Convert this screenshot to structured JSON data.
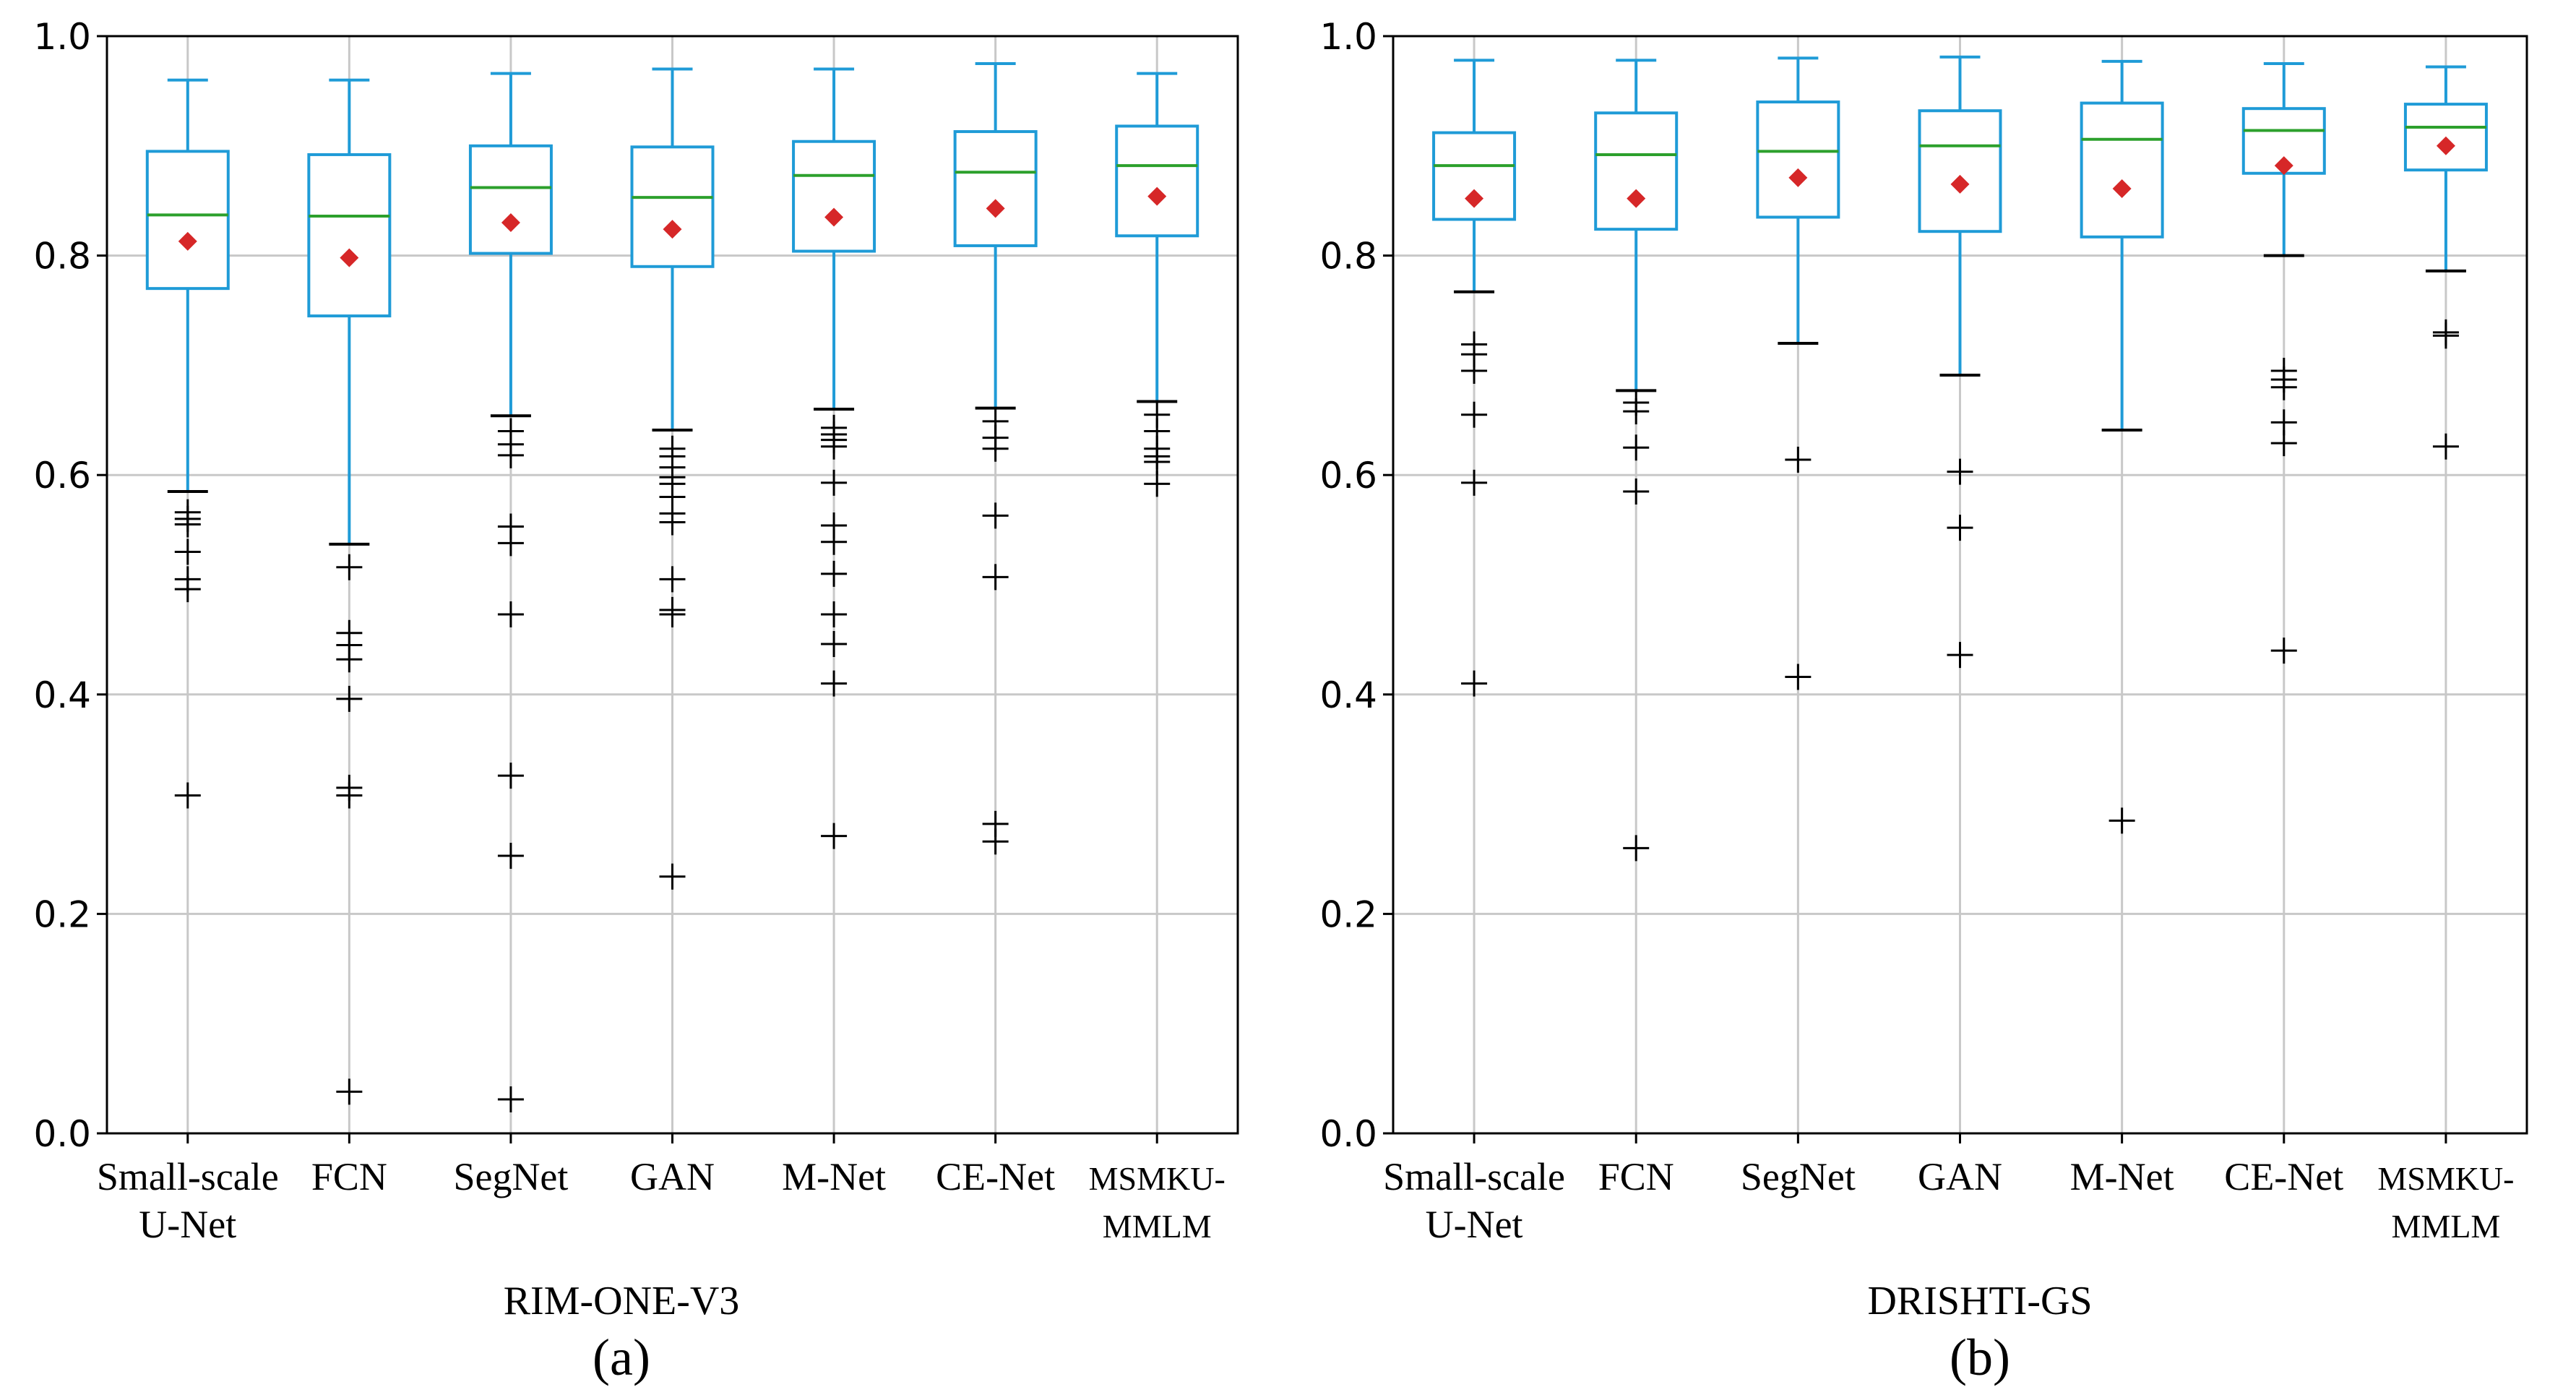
{
  "chart_data": [
    {
      "type": "boxplot",
      "caption": "(a)",
      "xlabel": "RIM-ONE-V3",
      "ylabel": "",
      "ylim": [
        0.0,
        1.0
      ],
      "yticks": [
        "0.0",
        "0.2",
        "0.4",
        "0.6",
        "0.8",
        "1.0"
      ],
      "grid": true,
      "colors": {
        "box": "#1f9bd7",
        "median": "#2ca02c",
        "mean": "#d62728",
        "flier": "#000000",
        "grid": "#c8c8c8"
      },
      "categories": [
        [
          "Small-scale",
          "U-Net"
        ],
        [
          "FCN"
        ],
        [
          "SegNet"
        ],
        [
          "GAN"
        ],
        [
          "M-Net"
        ],
        [
          "CE-Net"
        ],
        [
          "MSMKU-",
          "MMLM"
        ]
      ],
      "boxes": [
        {
          "whislo": 0.585,
          "q1": 0.77,
          "med": 0.837,
          "q3": 0.895,
          "whishi": 0.96,
          "mean": 0.813,
          "fliers": [
            0.566,
            0.56,
            0.555,
            0.53,
            0.505,
            0.496,
            0.308
          ]
        },
        {
          "whislo": 0.537,
          "q1": 0.745,
          "med": 0.836,
          "q3": 0.892,
          "whishi": 0.96,
          "mean": 0.798,
          "fliers": [
            0.516,
            0.456,
            0.445,
            0.432,
            0.396,
            0.315,
            0.308,
            0.038
          ]
        },
        {
          "whislo": 0.654,
          "q1": 0.802,
          "med": 0.862,
          "q3": 0.9,
          "whishi": 0.966,
          "mean": 0.83,
          "fliers": [
            0.64,
            0.628,
            0.618,
            0.553,
            0.538,
            0.473,
            0.326,
            0.253,
            0.031
          ]
        },
        {
          "whislo": 0.641,
          "q1": 0.79,
          "med": 0.853,
          "q3": 0.899,
          "whishi": 0.97,
          "mean": 0.824,
          "fliers": [
            0.624,
            0.617,
            0.607,
            0.598,
            0.592,
            0.58,
            0.565,
            0.557,
            0.505,
            0.477,
            0.473,
            0.234
          ]
        },
        {
          "whislo": 0.66,
          "q1": 0.804,
          "med": 0.873,
          "q3": 0.904,
          "whishi": 0.97,
          "mean": 0.835,
          "fliers": [
            0.643,
            0.637,
            0.632,
            0.626,
            0.593,
            0.554,
            0.539,
            0.51,
            0.473,
            0.446,
            0.41,
            0.271
          ]
        },
        {
          "whislo": 0.661,
          "q1": 0.809,
          "med": 0.876,
          "q3": 0.913,
          "whishi": 0.975,
          "mean": 0.843,
          "fliers": [
            0.649,
            0.634,
            0.624,
            0.563,
            0.507,
            0.282,
            0.266
          ]
        },
        {
          "whislo": 0.667,
          "q1": 0.818,
          "med": 0.882,
          "q3": 0.918,
          "whishi": 0.966,
          "mean": 0.854,
          "fliers": [
            0.655,
            0.64,
            0.624,
            0.617,
            0.612,
            0.592
          ]
        }
      ]
    },
    {
      "type": "boxplot",
      "caption": "(b)",
      "xlabel": "DRISHTI-GS",
      "ylabel": "",
      "ylim": [
        0.0,
        1.0
      ],
      "yticks": [
        "0.0",
        "0.2",
        "0.4",
        "0.6",
        "0.8",
        "1.0"
      ],
      "grid": true,
      "colors": {
        "box": "#1f9bd7",
        "median": "#2ca02c",
        "mean": "#d62728",
        "flier": "#000000",
        "grid": "#c8c8c8"
      },
      "categories": [
        [
          "Small-scale",
          "U-Net"
        ],
        [
          "FCN"
        ],
        [
          "SegNet"
        ],
        [
          "GAN"
        ],
        [
          "M-Net"
        ],
        [
          "CE-Net"
        ],
        [
          "MSMKU-",
          "MMLM"
        ]
      ],
      "boxes": [
        {
          "whislo": 0.767,
          "q1": 0.833,
          "med": 0.882,
          "q3": 0.912,
          "whishi": 0.978,
          "mean": 0.852,
          "fliers": [
            0.719,
            0.71,
            0.695,
            0.655,
            0.593,
            0.41
          ]
        },
        {
          "whislo": 0.677,
          "q1": 0.824,
          "med": 0.892,
          "q3": 0.93,
          "whishi": 0.978,
          "mean": 0.852,
          "fliers": [
            0.666,
            0.658,
            0.625,
            0.585,
            0.26
          ]
        },
        {
          "whislo": 0.72,
          "q1": 0.835,
          "med": 0.895,
          "q3": 0.94,
          "whishi": 0.98,
          "mean": 0.871,
          "fliers": [
            0.614,
            0.416
          ]
        },
        {
          "whislo": 0.691,
          "q1": 0.822,
          "med": 0.9,
          "q3": 0.932,
          "whishi": 0.981,
          "mean": 0.865,
          "fliers": [
            0.603,
            0.552,
            0.436
          ]
        },
        {
          "whislo": 0.641,
          "q1": 0.817,
          "med": 0.906,
          "q3": 0.939,
          "whishi": 0.977,
          "mean": 0.861,
          "fliers": [
            0.285
          ]
        },
        {
          "whislo": 0.8,
          "q1": 0.875,
          "med": 0.914,
          "q3": 0.934,
          "whishi": 0.975,
          "mean": 0.882,
          "fliers": [
            0.695,
            0.687,
            0.68,
            0.648,
            0.629,
            0.44
          ]
        },
        {
          "whislo": 0.786,
          "q1": 0.878,
          "med": 0.917,
          "q3": 0.938,
          "whishi": 0.972,
          "mean": 0.9,
          "fliers": [
            0.73,
            0.727,
            0.626
          ]
        }
      ]
    }
  ]
}
